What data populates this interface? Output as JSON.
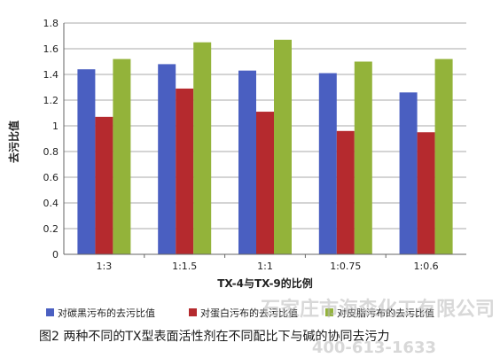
{
  "chart_data": {
    "type": "bar",
    "categories": [
      "1:3",
      "1:1.5",
      "1:1",
      "1:0.75",
      "1:0.6"
    ],
    "series": [
      {
        "name": "对碳黑污布的去污比值",
        "color": "#4a5fc1",
        "values": [
          1.44,
          1.48,
          1.43,
          1.41,
          1.26
        ]
      },
      {
        "name": "对蛋白污布的去污比值",
        "color": "#b52a2e",
        "values": [
          1.07,
          1.29,
          1.11,
          0.96,
          0.95
        ]
      },
      {
        "name": "对皮脂污布的去污比值",
        "color": "#93b33a",
        "values": [
          1.52,
          1.65,
          1.67,
          1.5,
          1.52
        ]
      }
    ],
    "title": "",
    "xlabel": "TX-4与TX-9的比例",
    "ylabel": "去污比值",
    "ylim": [
      0,
      1.8
    ],
    "yticks": [
      "0",
      "0.2",
      "0.4",
      "0.6",
      "0.8",
      "1",
      "1.2",
      "1.4",
      "1.6",
      "1.8"
    ],
    "grid": true,
    "legend_position": "bottom"
  },
  "caption": "图2  两种不同的TX型表面活性剂在不同配比下与碱的协同去污力",
  "watermark": {
    "company": "石家庄市海森化工有限公司",
    "phone": "400-613-1633"
  }
}
